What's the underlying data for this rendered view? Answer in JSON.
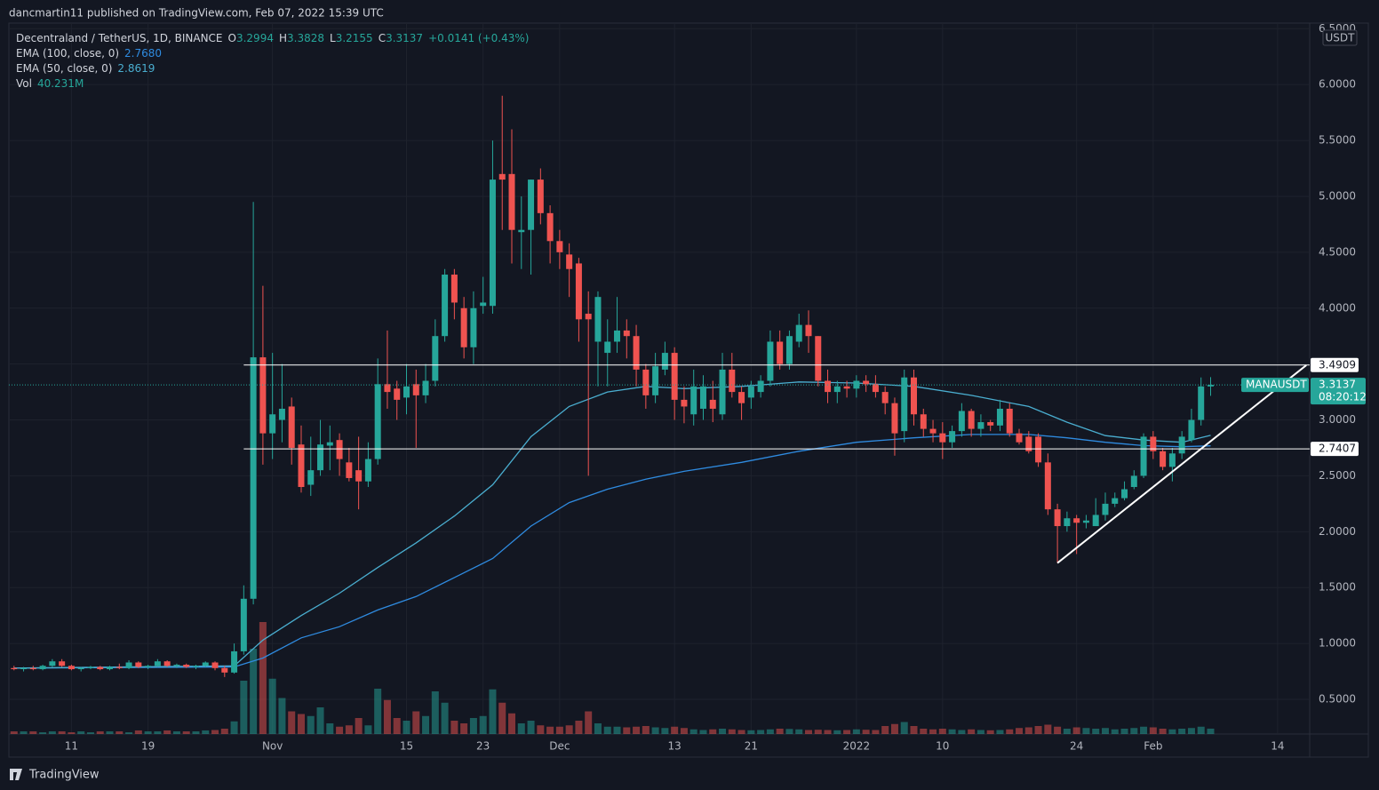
{
  "header": {
    "published": "dancmartin11 published on TradingView.com, Feb 07, 2022 15:39 UTC"
  },
  "footer": {
    "brand": "TradingView"
  },
  "chart_data": {
    "type": "candlestick",
    "legend": {
      "symbol": "Decentraland / TetherUS, 1D, BINANCE",
      "o": "O",
      "h": "H",
      "l": "L",
      "c": "C",
      "change": "+0.0141 (+0.43%)"
    },
    "currency": "USDT",
    "up_color": "#26a69a",
    "down_color": "#ef5350",
    "x": [
      "2021-10-05",
      "2021-10-06",
      "2021-10-07",
      "2021-10-08",
      "2021-10-09",
      "2021-10-10",
      "2021-10-11",
      "2021-10-12",
      "2021-10-13",
      "2021-10-14",
      "2021-10-15",
      "2021-10-16",
      "2021-10-17",
      "2021-10-18",
      "2021-10-19",
      "2021-10-20",
      "2021-10-21",
      "2021-10-22",
      "2021-10-23",
      "2021-10-24",
      "2021-10-25",
      "2021-10-26",
      "2021-10-27",
      "2021-10-28",
      "2021-10-29",
      "2021-10-30",
      "2021-10-31",
      "2021-11-01",
      "2021-11-02",
      "2021-11-03",
      "2021-11-04",
      "2021-11-05",
      "2021-11-06",
      "2021-11-07",
      "2021-11-08",
      "2021-11-09",
      "2021-11-10",
      "2021-11-11",
      "2021-11-12",
      "2021-11-13",
      "2021-11-14",
      "2021-11-15",
      "2021-11-16",
      "2021-11-17",
      "2021-11-18",
      "2021-11-19",
      "2021-11-20",
      "2021-11-21",
      "2021-11-22",
      "2021-11-23",
      "2021-11-24",
      "2021-11-25",
      "2021-11-26",
      "2021-11-27",
      "2021-11-28",
      "2021-11-29",
      "2021-11-30",
      "2021-12-01",
      "2021-12-02",
      "2021-12-03",
      "2021-12-04",
      "2021-12-05",
      "2021-12-06",
      "2021-12-07",
      "2021-12-08",
      "2021-12-09",
      "2021-12-10",
      "2021-12-11",
      "2021-12-12",
      "2021-12-13",
      "2021-12-14",
      "2021-12-15",
      "2021-12-16",
      "2021-12-17",
      "2021-12-18",
      "2021-12-19",
      "2021-12-20",
      "2021-12-21",
      "2021-12-22",
      "2021-12-23",
      "2021-12-24",
      "2021-12-25",
      "2021-12-26",
      "2021-12-27",
      "2021-12-28",
      "2021-12-29",
      "2021-12-30",
      "2021-12-31",
      "2022-01-01",
      "2022-01-02",
      "2022-01-03",
      "2022-01-04",
      "2022-01-05",
      "2022-01-06",
      "2022-01-07",
      "2022-01-08",
      "2022-01-09",
      "2022-01-10",
      "2022-01-11",
      "2022-01-12",
      "2022-01-13",
      "2022-01-14",
      "2022-01-15",
      "2022-01-16",
      "2022-01-17",
      "2022-01-18",
      "2022-01-19",
      "2022-01-20",
      "2022-01-21",
      "2022-01-22",
      "2022-01-23",
      "2022-01-24",
      "2022-01-25",
      "2022-01-26",
      "2022-01-27",
      "2022-01-28",
      "2022-01-29",
      "2022-01-30",
      "2022-01-31",
      "2022-02-01",
      "2022-02-02",
      "2022-02-03",
      "2022-02-04",
      "2022-02-05",
      "2022-02-06",
      "2022-02-07"
    ],
    "open": [
      0.78,
      0.77,
      0.78,
      0.77,
      0.8,
      0.84,
      0.8,
      0.77,
      0.78,
      0.79,
      0.77,
      0.79,
      0.78,
      0.83,
      0.79,
      0.8,
      0.84,
      0.8,
      0.81,
      0.79,
      0.8,
      0.83,
      0.78,
      0.74,
      0.93,
      1.4,
      3.56,
      2.88,
      3.0,
      3.12,
      2.78,
      2.42,
      2.55,
      2.77,
      2.82,
      2.62,
      2.55,
      2.45,
      2.65,
      3.32,
      3.28,
      3.2,
      3.32,
      3.22,
      3.35,
      3.75,
      4.3,
      4.0,
      3.65,
      4.02,
      4.02,
      5.2,
      5.2,
      4.68,
      4.7,
      5.15,
      4.85,
      4.6,
      4.48,
      4.4,
      3.95,
      3.7,
      3.6,
      3.7,
      3.8,
      3.75,
      3.45,
      3.22,
      3.45,
      3.6,
      3.18,
      3.05,
      3.1,
      3.18,
      3.05,
      3.45,
      3.25,
      3.2,
      3.25,
      3.35,
      3.7,
      3.5,
      3.7,
      3.85,
      3.75,
      3.35,
      3.25,
      3.3,
      3.28,
      3.35,
      3.32,
      3.25,
      3.15,
      2.9,
      3.38,
      3.05,
      2.92,
      2.88,
      2.8,
      2.9,
      3.08,
      2.92,
      2.98,
      2.95,
      3.1,
      2.88,
      2.85,
      2.85,
      2.62,
      2.2,
      2.05,
      2.12,
      2.08,
      2.05,
      2.15,
      2.25,
      2.3,
      2.4,
      2.5,
      2.85,
      2.72,
      2.58,
      2.7,
      2.82,
      3.0,
      3.2994
    ],
    "high": [
      0.8,
      0.79,
      0.8,
      0.81,
      0.86,
      0.86,
      0.81,
      0.79,
      0.8,
      0.8,
      0.8,
      0.82,
      0.85,
      0.84,
      0.81,
      0.86,
      0.85,
      0.82,
      0.82,
      0.81,
      0.84,
      0.84,
      0.8,
      1.0,
      1.52,
      4.95,
      4.2,
      3.6,
      3.5,
      3.2,
      2.95,
      2.85,
      3.0,
      2.95,
      2.88,
      2.75,
      2.85,
      2.8,
      3.55,
      3.8,
      3.35,
      3.5,
      3.45,
      3.5,
      3.9,
      4.35,
      4.35,
      4.1,
      4.15,
      4.28,
      5.5,
      5.9,
      5.6,
      5.0,
      5.15,
      5.25,
      4.92,
      4.7,
      4.58,
      4.45,
      4.15,
      4.15,
      3.9,
      4.1,
      3.9,
      3.85,
      3.5,
      3.6,
      3.7,
      3.65,
      3.3,
      3.45,
      3.4,
      3.35,
      3.6,
      3.6,
      3.3,
      3.35,
      3.4,
      3.8,
      3.8,
      3.8,
      3.95,
      3.98,
      3.75,
      3.45,
      3.35,
      3.35,
      3.4,
      3.4,
      3.4,
      3.3,
      3.2,
      3.45,
      3.45,
      3.1,
      3.0,
      2.98,
      2.95,
      3.15,
      3.1,
      3.05,
      3.0,
      3.18,
      3.15,
      2.92,
      2.9,
      2.88,
      2.7,
      2.25,
      2.18,
      2.15,
      2.15,
      2.3,
      2.35,
      2.35,
      2.45,
      2.55,
      2.88,
      2.9,
      2.75,
      2.75,
      2.9,
      3.1,
      3.38,
      3.3828
    ],
    "low": [
      0.76,
      0.75,
      0.76,
      0.76,
      0.79,
      0.79,
      0.76,
      0.75,
      0.77,
      0.76,
      0.76,
      0.77,
      0.77,
      0.78,
      0.77,
      0.79,
      0.79,
      0.78,
      0.78,
      0.77,
      0.79,
      0.76,
      0.7,
      0.73,
      0.9,
      1.35,
      2.6,
      2.65,
      2.8,
      2.6,
      2.35,
      2.32,
      2.5,
      2.55,
      2.5,
      2.45,
      2.2,
      2.4,
      2.6,
      3.1,
      3.0,
      3.05,
      2.75,
      3.15,
      3.3,
      3.7,
      3.9,
      3.55,
      3.5,
      3.95,
      3.95,
      4.7,
      4.4,
      4.35,
      4.3,
      4.75,
      4.4,
      4.35,
      4.1,
      3.7,
      2.5,
      3.3,
      3.3,
      3.6,
      3.55,
      3.3,
      3.1,
      3.15,
      3.4,
      3.0,
      2.97,
      2.95,
      3.0,
      2.98,
      3.0,
      3.2,
      3.0,
      3.1,
      3.2,
      3.3,
      3.45,
      3.45,
      3.65,
      3.6,
      3.3,
      3.15,
      3.15,
      3.2,
      3.2,
      3.25,
      3.2,
      3.05,
      2.68,
      2.8,
      2.95,
      2.85,
      2.8,
      2.65,
      2.75,
      2.85,
      2.85,
      2.85,
      2.9,
      2.9,
      2.85,
      2.78,
      2.7,
      2.58,
      2.15,
      1.72,
      2.0,
      1.8,
      2.03,
      2.05,
      2.1,
      2.22,
      2.28,
      2.38,
      2.48,
      2.65,
      2.55,
      2.45,
      2.65,
      2.8,
      2.95,
      3.2155
    ],
    "close": [
      0.77,
      0.78,
      0.77,
      0.8,
      0.84,
      0.8,
      0.77,
      0.78,
      0.79,
      0.77,
      0.79,
      0.78,
      0.83,
      0.79,
      0.8,
      0.84,
      0.8,
      0.81,
      0.79,
      0.8,
      0.83,
      0.78,
      0.74,
      0.93,
      1.4,
      3.56,
      2.88,
      3.05,
      3.1,
      2.75,
      2.4,
      2.55,
      2.78,
      2.8,
      2.65,
      2.48,
      2.45,
      2.65,
      3.32,
      3.25,
      3.18,
      3.3,
      3.22,
      3.35,
      3.75,
      4.3,
      4.05,
      3.65,
      4.0,
      4.05,
      5.15,
      5.15,
      4.7,
      4.7,
      5.15,
      4.85,
      4.6,
      4.5,
      4.35,
      3.9,
      3.9,
      4.1,
      3.7,
      3.8,
      3.75,
      3.45,
      3.22,
      3.48,
      3.6,
      3.18,
      3.12,
      3.3,
      3.3,
      3.1,
      3.45,
      3.25,
      3.15,
      3.3,
      3.35,
      3.7,
      3.5,
      3.75,
      3.85,
      3.75,
      3.35,
      3.25,
      3.3,
      3.28,
      3.35,
      3.32,
      3.25,
      3.15,
      2.88,
      3.38,
      3.05,
      2.92,
      2.88,
      2.8,
      2.9,
      3.08,
      2.92,
      2.98,
      2.95,
      3.1,
      2.88,
      2.8,
      2.72,
      2.62,
      2.2,
      2.05,
      2.12,
      2.08,
      2.1,
      2.15,
      2.25,
      2.3,
      2.38,
      2.5,
      2.85,
      2.72,
      2.58,
      2.7,
      2.85,
      3.0,
      3.3,
      3.3137
    ],
    "volume": {
      "name": "Vol",
      "value_label": "40.231M",
      "ylim": [
        0,
        1000
      ],
      "values": [
        20,
        20,
        20,
        13,
        20,
        20,
        13,
        20,
        13,
        20,
        20,
        20,
        13,
        27,
        20,
        20,
        27,
        20,
        20,
        20,
        27,
        30,
        40,
        95,
        400,
        640,
        840,
        415,
        270,
        170,
        150,
        135,
        200,
        80,
        55,
        65,
        120,
        65,
        340,
        255,
        120,
        100,
        170,
        135,
        320,
        235,
        100,
        80,
        120,
        135,
        335,
        235,
        155,
        80,
        100,
        65,
        55,
        55,
        65,
        100,
        170,
        80,
        55,
        55,
        50,
        55,
        60,
        50,
        45,
        55,
        45,
        35,
        30,
        35,
        40,
        35,
        30,
        28,
        30,
        35,
        40,
        38,
        35,
        30,
        32,
        30,
        28,
        30,
        35,
        32,
        30,
        60,
        75,
        90,
        60,
        40,
        35,
        40,
        35,
        30,
        35,
        30,
        28,
        30,
        35,
        45,
        50,
        60,
        70,
        55,
        40,
        50,
        45,
        40,
        45,
        35,
        40,
        45,
        55,
        50,
        40,
        35,
        40,
        45,
        55,
        40.231
      ]
    },
    "ema": [
      {
        "name": "EMA (100, close, 0)",
        "color": "#2f8be0",
        "value_label": "2.7680",
        "x": [
          "2021-10-05",
          "2021-10-28",
          "2021-10-31",
          "2021-11-04",
          "2021-11-08",
          "2021-11-12",
          "2021-11-16",
          "2021-11-20",
          "2021-11-24",
          "2021-11-28",
          "2021-12-02",
          "2021-12-06",
          "2021-12-10",
          "2021-12-14",
          "2021-12-20",
          "2021-12-26",
          "2022-01-01",
          "2022-01-07",
          "2022-01-13",
          "2022-01-19",
          "2022-01-23",
          "2022-01-27",
          "2022-01-31",
          "2022-02-04",
          "2022-02-07"
        ],
        "values": [
          0.78,
          0.79,
          0.87,
          1.05,
          1.15,
          1.3,
          1.42,
          1.59,
          1.76,
          2.05,
          2.26,
          2.38,
          2.47,
          2.54,
          2.62,
          2.72,
          2.8,
          2.84,
          2.87,
          2.87,
          2.84,
          2.8,
          2.77,
          2.76,
          2.768
        ]
      },
      {
        "name": "EMA (50, close, 0)",
        "color": "#4aaed0",
        "value_label": "2.8619",
        "x": [
          "2021-10-05",
          "2021-10-28",
          "2021-10-31",
          "2021-11-04",
          "2021-11-08",
          "2021-11-12",
          "2021-11-16",
          "2021-11-20",
          "2021-11-24",
          "2021-11-28",
          "2021-12-02",
          "2021-12-06",
          "2021-12-10",
          "2021-12-14",
          "2021-12-20",
          "2021-12-26",
          "2022-01-01",
          "2022-01-07",
          "2022-01-13",
          "2022-01-19",
          "2022-01-23",
          "2022-01-27",
          "2022-01-31",
          "2022-02-04",
          "2022-02-07"
        ],
        "values": [
          0.78,
          0.8,
          1.03,
          1.25,
          1.45,
          1.68,
          1.9,
          2.14,
          2.42,
          2.85,
          3.12,
          3.25,
          3.3,
          3.28,
          3.3,
          3.34,
          3.33,
          3.3,
          3.22,
          3.12,
          2.98,
          2.86,
          2.82,
          2.8,
          2.8619
        ]
      }
    ],
    "hlines": [
      {
        "value": 3.4909,
        "start": "2021-10-29"
      },
      {
        "value": 2.7407,
        "start": "2021-10-29"
      }
    ],
    "trend_line": {
      "x": [
        "2022-01-22",
        "2022-02-17"
      ],
      "values": [
        1.72,
        3.49
      ]
    },
    "last_price": {
      "symbol": "MANAUSDT",
      "countdown": "08:20:12"
    },
    "ylim": [
      0.19,
      6.55
    ],
    "yticks": [
      {
        "value": 0.5,
        "label": "0.5000"
      },
      {
        "value": 1.0,
        "label": "1.0000"
      },
      {
        "value": 1.5,
        "label": "1.5000"
      },
      {
        "value": 2.0,
        "label": "2.0000"
      },
      {
        "value": 2.5,
        "label": "2.5000"
      },
      {
        "value": 3.0,
        "label": "3.0000"
      },
      {
        "value": 3.5,
        "label": "3.5000"
      },
      {
        "value": 4.0,
        "label": "4.0000"
      },
      {
        "value": 4.5,
        "label": "4.5000"
      },
      {
        "value": 5.0,
        "label": "5.0000"
      },
      {
        "value": 5.5,
        "label": "5.5000"
      },
      {
        "value": 6.0,
        "label": "6.0000"
      },
      {
        "value": 6.5,
        "label": "6.5000"
      }
    ],
    "xlim": [
      "2021-10-04",
      "2022-02-18"
    ],
    "xticks": [
      {
        "value": "2021-10-11",
        "label": "11"
      },
      {
        "value": "2021-10-19",
        "label": "19"
      },
      {
        "value": "2021-11-01",
        "label": "Nov"
      },
      {
        "value": "2021-11-15",
        "label": "15"
      },
      {
        "value": "2021-11-23",
        "label": "23"
      },
      {
        "value": "2021-12-01",
        "label": "Dec"
      },
      {
        "value": "2021-12-13",
        "label": "13"
      },
      {
        "value": "2021-12-21",
        "label": "21"
      },
      {
        "value": "2022-01-01",
        "label": "2022"
      },
      {
        "value": "2022-01-10",
        "label": "10"
      },
      {
        "value": "2022-01-24",
        "label": "24"
      },
      {
        "value": "2022-02-01",
        "label": "Feb"
      },
      {
        "value": "2022-02-14",
        "label": "14"
      }
    ],
    "grid": true
  }
}
